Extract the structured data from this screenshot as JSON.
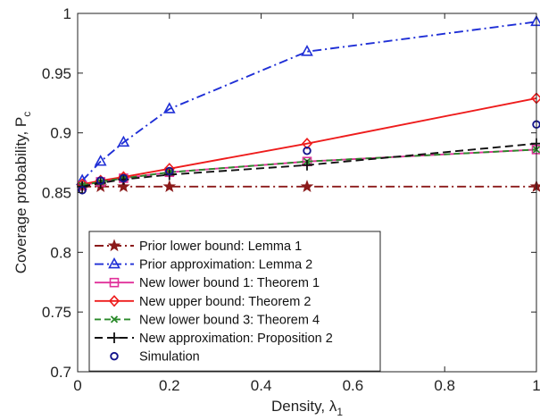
{
  "chart_data": {
    "type": "line",
    "xlabel": "Density, λ",
    "xlabel_sub": "1",
    "ylabel": "Coverage probability, P",
    "ylabel_sub": "c",
    "xlim": [
      0,
      1
    ],
    "ylim": [
      0.7,
      1
    ],
    "xticks": [
      0,
      0.2,
      0.4,
      0.6,
      0.8,
      1
    ],
    "xtick_labels": [
      "0",
      "0.2",
      "0.4",
      "0.6",
      "0.8",
      "1"
    ],
    "yticks": [
      0.7,
      0.75,
      0.8,
      0.85,
      0.9,
      0.95,
      1
    ],
    "ytick_labels": [
      "0.7",
      "0.75",
      "0.8",
      "0.85",
      "0.9",
      "0.95",
      "1"
    ],
    "grid": false,
    "legend_position": "bottom-left",
    "x": [
      0.01,
      0.05,
      0.1,
      0.2,
      0.5,
      1
    ],
    "series": [
      {
        "name": "Prior lower bound: Lemma 1",
        "color": "#8b1a1a",
        "marker": "star",
        "dash": "10,4,2,4",
        "values": [
          0.855,
          0.855,
          0.855,
          0.855,
          0.855,
          0.855
        ]
      },
      {
        "name": "Prior approximation: Lemma 2",
        "color": "#1f2fd6",
        "marker": "triangle",
        "dash": "10,4,2,4",
        "values": [
          0.86,
          0.876,
          0.892,
          0.92,
          0.968,
          0.993
        ]
      },
      {
        "name": "New lower bound 1: Theorem 1",
        "color": "#e0309a",
        "marker": "square",
        "dash": "",
        "values": [
          0.856,
          0.859,
          0.862,
          0.867,
          0.876,
          0.886
        ]
      },
      {
        "name": "New upper bound: Theorem 2",
        "color": "#ee1c1c",
        "marker": "diamond",
        "dash": "",
        "values": [
          0.857,
          0.86,
          0.863,
          0.87,
          0.891,
          0.929
        ]
      },
      {
        "name": "New lower bound 3: Theorem 4",
        "color": "#2a8a2a",
        "marker": "x",
        "dash": "7,4",
        "values": [
          0.856,
          0.859,
          0.862,
          0.867,
          0.876,
          0.886
        ]
      },
      {
        "name": "New approximation: Proposition 2",
        "color": "#111111",
        "marker": "plus",
        "dash": "9,5",
        "values": [
          0.855,
          0.858,
          0.861,
          0.865,
          0.873,
          0.891
        ]
      },
      {
        "name": "Simulation",
        "color": "#14148c",
        "marker": "circle",
        "dash": "none",
        "values": [
          0.852,
          0.86,
          0.862,
          0.868,
          0.885,
          0.907
        ]
      }
    ]
  }
}
